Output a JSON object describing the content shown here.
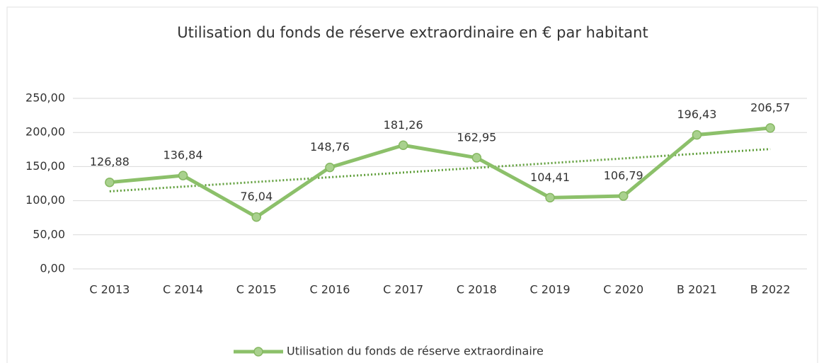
{
  "chart_data": {
    "type": "line",
    "title": "Utilisation du fonds de réserve extraordinaire en € par habitant",
    "categories": [
      "C 2013",
      "C 2014",
      "C 2015",
      "C 2016",
      "C 2017",
      "C 2018",
      "C 2019",
      "C 2020",
      "B 2021",
      "B 2022"
    ],
    "series": [
      {
        "name": "Utilisation du fonds de réserve extraordinaire",
        "color": "#8cc06a",
        "values": [
          126.88,
          136.84,
          76.04,
          148.76,
          181.26,
          162.95,
          104.41,
          106.79,
          196.43,
          206.57
        ],
        "value_labels": [
          "126,88",
          "136,84",
          "76,04",
          "148,76",
          "181,26",
          "162,95",
          "104,41",
          "106,79",
          "196,43",
          "206,57"
        ]
      }
    ],
    "ylim": [
      0,
      250
    ],
    "yticks": [
      {
        "value": 0,
        "label": "0,00"
      },
      {
        "value": 50,
        "label": "50,00"
      },
      {
        "value": 100,
        "label": "100,00"
      },
      {
        "value": 150,
        "label": "150,00"
      },
      {
        "value": 200,
        "label": "200,00"
      },
      {
        "value": 250,
        "label": "250,00"
      }
    ],
    "grid": true,
    "trendline": true,
    "trendline_color": "#5f9e3a",
    "legend": "bottom"
  }
}
